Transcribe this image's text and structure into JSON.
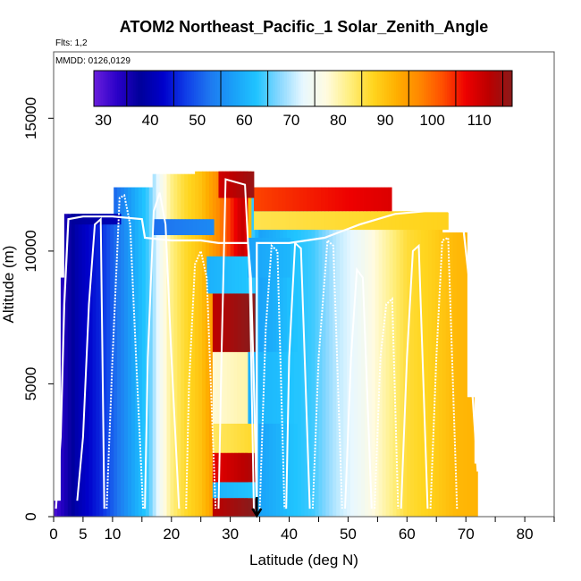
{
  "chart_data": {
    "type": "heatmap",
    "title": "ATOM2 Northeast_Pacific_1 Solar_Zenith_Angle",
    "flights_note": "Flts: 1,2",
    "dates_note": "MMDD: 0126,0129",
    "xlabel": "Latitude (deg N)",
    "ylabel": "Altitude (m)",
    "xlim": [
      0,
      85
    ],
    "ylim": [
      0,
      17500
    ],
    "x_ticks": [
      0,
      5,
      10,
      20,
      30,
      40,
      50,
      60,
      70,
      80
    ],
    "x_ticks_unlabeled": [
      15,
      25,
      35,
      45,
      55,
      65,
      75,
      85
    ],
    "y_ticks": [
      0,
      5000,
      10000,
      15000
    ],
    "colorbar": {
      "min": 28,
      "max": 117,
      "ticks": [
        30,
        40,
        50,
        60,
        70,
        80,
        90,
        100,
        110
      ],
      "colors": [
        "#6a1fdc",
        "#2a00c8",
        "#00009a",
        "#0000cc",
        "#1040e8",
        "#1e78f0",
        "#1aa0f8",
        "#20c4ff",
        "#8ad8ff",
        "#e8f8ff",
        "#fffbe0",
        "#ffef80",
        "#ffd620",
        "#ffb000",
        "#ff8800",
        "#ff5000",
        "#ee0000",
        "#bb0000",
        "#8b1a1a"
      ]
    },
    "arrow_marker": {
      "latitude": 34.5,
      "altitude": 0
    },
    "flight_track_left": [
      [
        0.4,
        300
      ],
      [
        1.2,
        3000
      ],
      [
        1.8,
        8000
      ],
      [
        2.5,
        11200
      ],
      [
        5,
        11300
      ],
      [
        10,
        11300
      ],
      [
        15,
        11200
      ],
      [
        15.5,
        10500
      ],
      [
        20,
        10400
      ],
      [
        25,
        10400
      ],
      [
        28,
        10300
      ],
      [
        33,
        10300
      ],
      [
        33.5,
        9000
      ],
      [
        34,
        5000
      ],
      [
        34.5,
        300
      ]
    ],
    "flight_track_right": [
      [
        72,
        1700
      ],
      [
        71,
        5000
      ],
      [
        70.5,
        9000
      ],
      [
        69.5,
        11000
      ],
      [
        67,
        11500
      ],
      [
        63,
        11500
      ],
      [
        58,
        11400
      ],
      [
        52,
        11000
      ],
      [
        46,
        10500
      ],
      [
        40,
        10300
      ],
      [
        34.5,
        10300
      ],
      [
        34.5,
        3000
      ],
      [
        34.5,
        300
      ]
    ],
    "profiles": [
      [
        [
          4,
          600
        ],
        [
          5,
          3000
        ],
        [
          6,
          8000
        ],
        [
          7,
          11000
        ],
        [
          8,
          11200
        ],
        [
          8.6,
          300
        ]
      ],
      [
        [
          9,
          300
        ],
        [
          10,
          6000
        ],
        [
          11.2,
          12000
        ],
        [
          12,
          12100
        ],
        [
          13,
          11000
        ],
        [
          14,
          6000
        ],
        [
          15.2,
          300
        ]
      ],
      [
        [
          15.5,
          300
        ],
        [
          16,
          6000
        ],
        [
          17,
          11500
        ],
        [
          18,
          12200
        ],
        [
          19,
          11000
        ],
        [
          20,
          6000
        ],
        [
          21.3,
          300
        ]
      ],
      [
        [
          22.5,
          300
        ],
        [
          23,
          5000
        ],
        [
          24,
          9500
        ],
        [
          25,
          10000
        ],
        [
          26,
          9000
        ],
        [
          27.5,
          300
        ]
      ],
      [
        [
          28,
          300
        ],
        [
          28.5,
          6000
        ],
        [
          29.2,
          12700
        ],
        [
          32.5,
          12500
        ],
        [
          33.3,
          9000
        ],
        [
          34,
          300
        ]
      ],
      [
        [
          35,
          300
        ],
        [
          36,
          7000
        ],
        [
          37,
          10200
        ],
        [
          38,
          10000
        ],
        [
          39.2,
          300
        ]
      ],
      [
        [
          39.5,
          300
        ],
        [
          40,
          6000
        ],
        [
          41,
          10300
        ],
        [
          42,
          10100
        ],
        [
          43.5,
          300
        ]
      ],
      [
        [
          44,
          300
        ],
        [
          45,
          6000
        ],
        [
          46.5,
          10400
        ],
        [
          47.5,
          10200
        ],
        [
          49,
          300
        ]
      ],
      [
        [
          49.5,
          300
        ],
        [
          50.5,
          6000
        ],
        [
          51.5,
          9300
        ],
        [
          52.5,
          9000
        ],
        [
          54,
          300
        ]
      ],
      [
        [
          54.5,
          300
        ],
        [
          55.5,
          6000
        ],
        [
          56.5,
          8000
        ],
        [
          57.5,
          8200
        ],
        [
          58.5,
          300
        ]
      ],
      [
        [
          59,
          300
        ],
        [
          60,
          6000
        ],
        [
          61,
          10000
        ],
        [
          62,
          10200
        ],
        [
          63.5,
          300
        ]
      ],
      [
        [
          64,
          300
        ],
        [
          65,
          6000
        ],
        [
          66,
          10400
        ],
        [
          67,
          10500
        ],
        [
          68.5,
          300
        ]
      ]
    ]
  }
}
